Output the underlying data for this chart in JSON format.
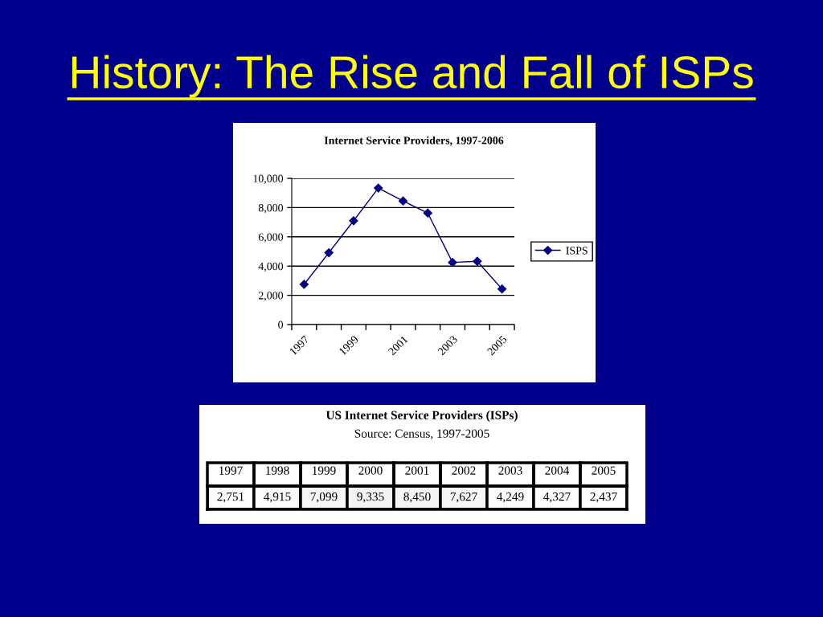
{
  "chart_data": [
    {
      "type": "line",
      "title": "History: The Rise and Fall of ISPs",
      "subtitle": "Internet Service Providers, 1997-2006",
      "categories": [
        "1997",
        null,
        "1999",
        null,
        "2001",
        null,
        "2003",
        null,
        "2005"
      ],
      "series": [
        {
          "name": "ISPS",
          "color": "#000080",
          "values": [
            2751,
            4915,
            7099,
            9335,
            8450,
            7627,
            4249,
            4327,
            2437
          ]
        }
      ],
      "ylim": [
        0,
        10000
      ],
      "yticks": [
        0,
        {
          "value": 2000,
          "label": "2,000"
        },
        {
          "value": 4000,
          "label": "4,000"
        },
        {
          "value": 6000,
          "label": "6,000"
        },
        {
          "value": 8000,
          "label": "8,000"
        },
        {
          "value": 10000,
          "label": "10,000"
        }
      ],
      "grid": "y",
      "legend": "right",
      "marker": "diamond",
      "line_style": "solid"
    },
    {
      "type": "heatmap",
      "title": "US Internet Service Providers (ISPs)",
      "annotations": [
        "Source: Census, 1997-2005"
      ],
      "categories": [
        "1997",
        "1998",
        "1999",
        "2000",
        "2001",
        "2002",
        "2003",
        "2004",
        "2005"
      ],
      "y_categories": [
        null
      ],
      "cells": [
        [
          2751,
          4915,
          7099,
          9335,
          8450,
          7627,
          4249,
          4327,
          2437
        ]
      ],
      "cell_labels": [
        [
          "2,751",
          "4,915",
          "7,099",
          "9,335",
          "8,450",
          "7,627",
          "4,249",
          "4,327",
          "2,437"
        ]
      ]
    }
  ]
}
